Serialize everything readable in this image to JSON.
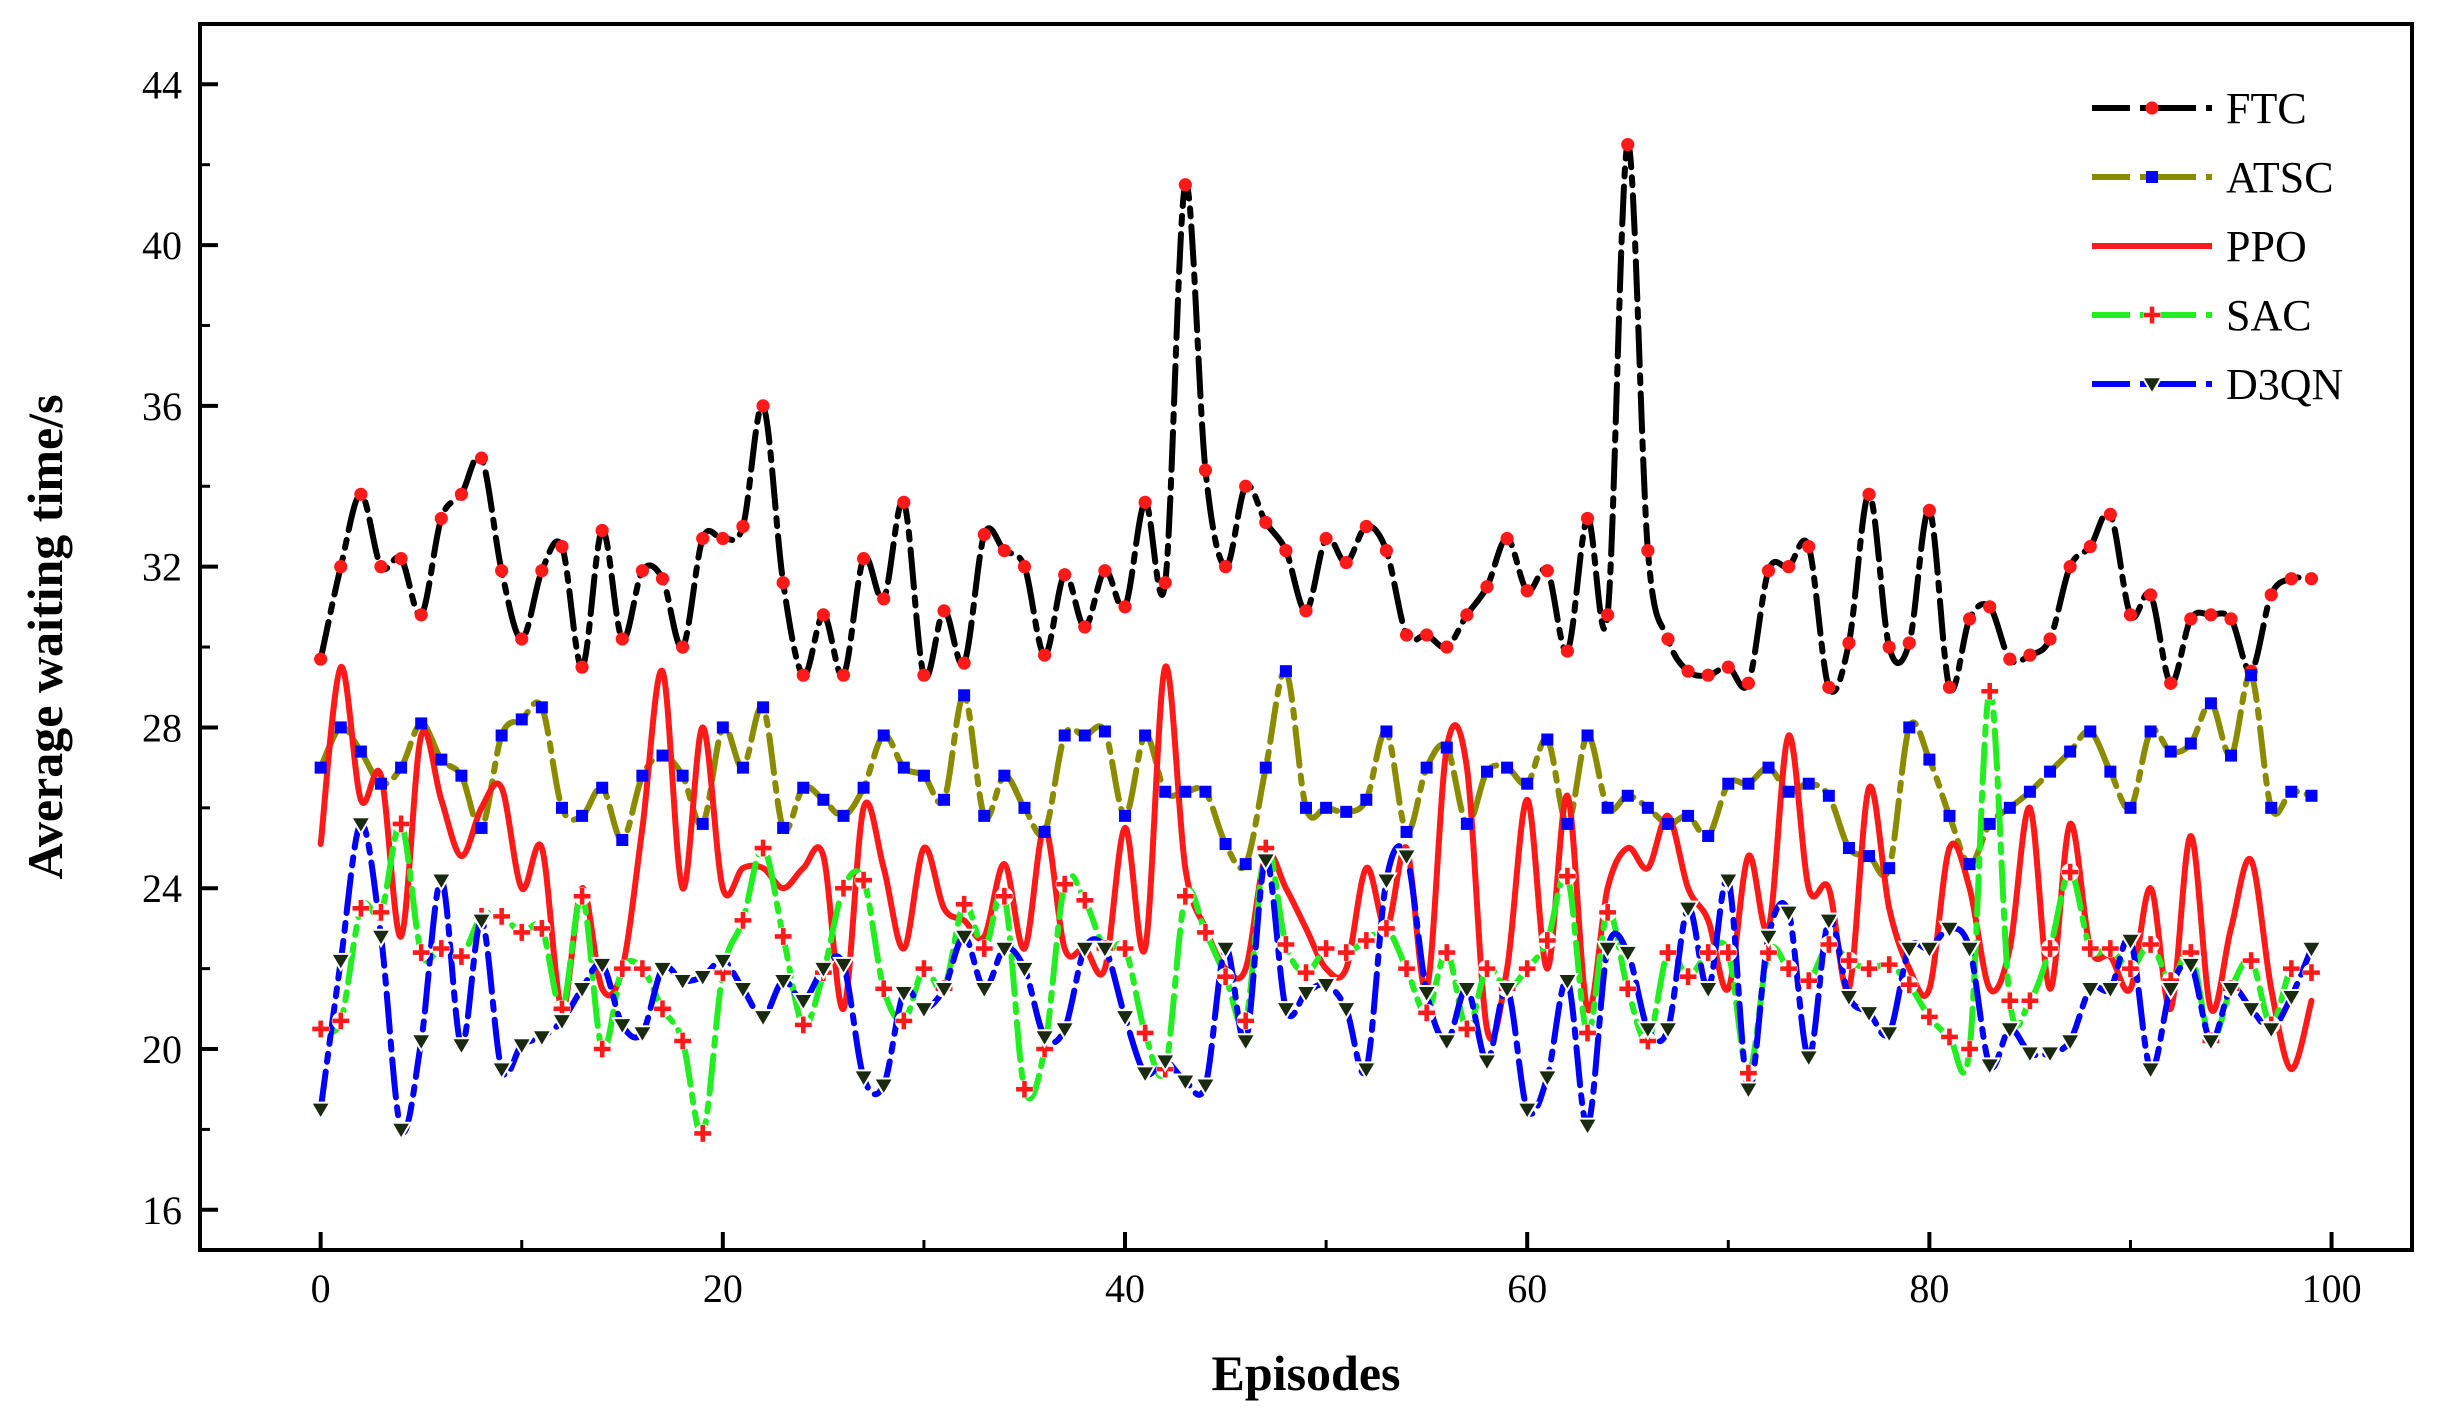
{
  "chart_data": {
    "type": "line",
    "title": "",
    "xlabel": "Episodes",
    "ylabel": "Average waiting time/s",
    "xlim": [
      -6,
      104
    ],
    "ylim": [
      15,
      45.5
    ],
    "xticks": [
      0,
      20,
      40,
      60,
      80,
      100
    ],
    "yticks": [
      16,
      20,
      24,
      28,
      32,
      36,
      40,
      44
    ],
    "legend_position": "top-right",
    "x": [
      0,
      1,
      2,
      3,
      4,
      5,
      6,
      7,
      8,
      9,
      10,
      11,
      12,
      13,
      14,
      15,
      16,
      17,
      18,
      19,
      20,
      21,
      22,
      23,
      24,
      25,
      26,
      27,
      28,
      29,
      30,
      31,
      32,
      33,
      34,
      35,
      36,
      37,
      38,
      39,
      40,
      41,
      42,
      43,
      44,
      45,
      46,
      47,
      48,
      49,
      50,
      51,
      52,
      53,
      54,
      55,
      56,
      57,
      58,
      59,
      60,
      61,
      62,
      63,
      64,
      65,
      66,
      67,
      68,
      69,
      70,
      71,
      72,
      73,
      74,
      75,
      76,
      77,
      78,
      79,
      80,
      81,
      82,
      83,
      84,
      85,
      86,
      87,
      88,
      89,
      90,
      91,
      92,
      93,
      94,
      95,
      96,
      97,
      98,
      99
    ],
    "series": [
      {
        "name": "FTC",
        "color": "#000000",
        "marker": "dot",
        "marker_color": "#ff1a1a",
        "values": [
          29.7,
          32.0,
          33.8,
          32.0,
          32.2,
          30.8,
          33.2,
          33.8,
          34.7,
          31.9,
          30.2,
          31.9,
          32.5,
          29.5,
          32.9,
          30.2,
          31.9,
          31.7,
          30.0,
          32.7,
          32.7,
          33.0,
          36.0,
          31.6,
          29.3,
          30.8,
          29.3,
          32.2,
          31.2,
          33.6,
          29.3,
          30.9,
          29.6,
          32.8,
          32.4,
          32.0,
          29.8,
          31.8,
          30.5,
          31.9,
          31.0,
          33.6,
          31.6,
          41.5,
          34.4,
          32.0,
          34.0,
          33.1,
          32.4,
          30.9,
          32.7,
          32.1,
          33.0,
          32.4,
          30.3,
          30.3,
          30.0,
          30.8,
          31.5,
          32.7,
          31.4,
          31.9,
          29.9,
          33.2,
          30.8,
          42.5,
          32.4,
          30.2,
          29.4,
          29.3,
          29.5,
          29.1,
          31.9,
          32.0,
          32.5,
          29.0,
          30.1,
          33.8,
          30.0,
          30.1,
          33.4,
          29.0,
          30.7,
          31.0,
          29.7,
          29.8,
          30.2,
          32.0,
          32.5,
          33.3,
          30.8,
          31.3,
          29.1,
          30.7,
          30.8,
          30.7,
          29.4,
          31.3,
          31.7,
          31.7
        ]
      },
      {
        "name": "ATSC",
        "color": "#8b8b00",
        "marker": "square",
        "marker_color": "#0000ff",
        "values": [
          27.0,
          28.0,
          27.4,
          26.6,
          27.0,
          28.1,
          27.2,
          26.8,
          25.5,
          27.8,
          28.2,
          28.5,
          26.0,
          25.8,
          26.5,
          25.2,
          26.8,
          27.3,
          26.8,
          25.6,
          28.0,
          27.0,
          28.5,
          25.5,
          26.5,
          26.2,
          25.8,
          26.5,
          27.8,
          27.0,
          26.8,
          26.2,
          28.8,
          25.8,
          26.8,
          26.0,
          25.4,
          27.8,
          27.8,
          27.9,
          25.8,
          27.8,
          26.4,
          26.4,
          26.4,
          25.1,
          24.6,
          27.0,
          29.4,
          26.0,
          26.0,
          25.9,
          26.2,
          27.9,
          25.4,
          27.0,
          27.5,
          25.6,
          26.9,
          27.0,
          26.6,
          27.7,
          25.6,
          27.8,
          26.0,
          26.3,
          26.0,
          25.6,
          25.8,
          25.3,
          26.6,
          26.6,
          27.0,
          26.4,
          26.6,
          26.3,
          25.0,
          24.8,
          24.5,
          28.0,
          27.2,
          25.8,
          24.6,
          25.6,
          26.0,
          26.4,
          26.9,
          27.4,
          27.9,
          26.9,
          26.0,
          27.9,
          27.4,
          27.6,
          28.6,
          27.3,
          29.3,
          26.0,
          26.4,
          26.3
        ]
      },
      {
        "name": "PPO",
        "color": "#ff1a1a",
        "marker": "none",
        "marker_color": "#ff1a1a",
        "values": [
          25.1,
          29.5,
          26.2,
          26.8,
          22.8,
          27.8,
          26.2,
          24.8,
          26.0,
          26.5,
          24.0,
          25.0,
          21.0,
          24.0,
          21.5,
          22.0,
          25.5,
          29.4,
          24.0,
          28.0,
          24.0,
          24.5,
          24.5,
          24.0,
          24.5,
          24.8,
          21.0,
          26.0,
          24.5,
          22.5,
          25.0,
          23.5,
          23.2,
          22.8,
          24.6,
          22.5,
          25.5,
          22.5,
          22.5,
          22.0,
          25.5,
          22.5,
          29.5,
          24.5,
          23.0,
          22.0,
          22.0,
          24.8,
          24.0,
          23.0,
          22.0,
          22.0,
          24.5,
          23.0,
          25.0,
          21.5,
          27.5,
          27.0,
          20.5,
          22.0,
          26.2,
          22.0,
          26.3,
          21.0,
          24.0,
          25.0,
          24.5,
          25.8,
          24.0,
          23.2,
          21.5,
          24.8,
          23.0,
          27.8,
          24.0,
          24.0,
          21.5,
          26.5,
          23.5,
          22.0,
          21.5,
          25.0,
          24.0,
          21.5,
          22.5,
          26.0,
          21.5,
          25.6,
          22.5,
          22.3,
          21.5,
          24.0,
          21.0,
          25.3,
          21.0,
          23.0,
          24.7,
          21.5,
          19.5,
          21.2
        ]
      },
      {
        "name": "SAC",
        "color": "#22ee22",
        "marker": "plus",
        "marker_color": "#ff1a1a",
        "values": [
          20.5,
          20.7,
          23.5,
          23.4,
          25.6,
          22.4,
          22.5,
          22.3,
          23.3,
          23.3,
          22.9,
          23.0,
          21.0,
          23.8,
          20.0,
          22.0,
          22.0,
          21.0,
          20.2,
          17.9,
          21.9,
          23.2,
          25.0,
          22.8,
          20.6,
          21.9,
          24.0,
          24.2,
          21.5,
          20.7,
          22.0,
          21.5,
          23.6,
          22.5,
          23.8,
          19.0,
          20.0,
          24.1,
          23.7,
          22.5,
          22.5,
          20.4,
          19.5,
          23.8,
          22.9,
          21.8,
          20.7,
          25.0,
          22.6,
          21.9,
          22.5,
          22.4,
          22.7,
          23.0,
          22.0,
          20.9,
          22.4,
          20.5,
          22.0,
          21.5,
          22.0,
          22.7,
          24.3,
          20.4,
          23.4,
          21.5,
          20.2,
          22.4,
          21.8,
          22.4,
          22.4,
          19.4,
          22.4,
          22.0,
          21.7,
          22.6,
          22.2,
          22.0,
          22.1,
          21.6,
          20.8,
          20.3,
          20.0,
          28.9,
          21.2,
          21.2,
          22.5,
          24.4,
          22.5,
          22.5,
          22.0,
          22.6,
          21.7,
          22.4,
          20.2,
          21.5,
          22.2,
          20.6,
          22.0,
          21.9
        ]
      },
      {
        "name": "D3QN",
        "color": "#0000ff",
        "marker": "triangle-down",
        "marker_color": "#1a2a10",
        "values": [
          18.5,
          22.2,
          25.6,
          22.8,
          18.0,
          20.2,
          24.2,
          20.1,
          23.2,
          19.5,
          20.1,
          20.3,
          20.7,
          21.5,
          22.1,
          20.6,
          20.4,
          22.0,
          21.7,
          21.8,
          22.2,
          21.5,
          20.8,
          21.7,
          21.2,
          22.0,
          22.1,
          19.3,
          19.1,
          21.4,
          21.0,
          21.5,
          22.8,
          21.5,
          22.5,
          22.0,
          20.3,
          20.5,
          22.5,
          22.5,
          20.8,
          19.4,
          19.7,
          19.2,
          19.1,
          22.5,
          20.2,
          24.7,
          21.0,
          21.4,
          21.6,
          21.0,
          19.5,
          24.2,
          24.8,
          21.4,
          20.2,
          21.5,
          19.7,
          21.5,
          18.5,
          19.3,
          21.7,
          18.1,
          22.5,
          22.4,
          20.5,
          20.5,
          23.5,
          21.5,
          24.2,
          19.0,
          22.8,
          23.4,
          19.8,
          23.2,
          21.3,
          20.9,
          20.4,
          22.5,
          22.5,
          23.0,
          22.5,
          19.6,
          20.5,
          19.9,
          19.9,
          20.2,
          21.5,
          21.5,
          22.7,
          19.5,
          21.5,
          22.1,
          20.2,
          21.5,
          21.0,
          20.5,
          21.3,
          22.5
        ]
      }
    ]
  }
}
